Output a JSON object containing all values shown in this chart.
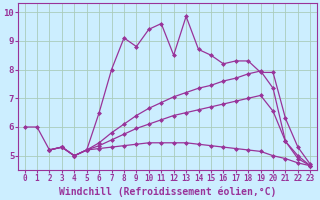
{
  "xlabel": "Windchill (Refroidissement éolien,°C)",
  "ylabel": "",
  "bg_color": "#cceeff",
  "grid_color": "#aaccbb",
  "line_color": "#993399",
  "xlim": [
    -0.5,
    23.5
  ],
  "ylim": [
    4.5,
    10.3
  ],
  "yticks": [
    5,
    6,
    7,
    8,
    9,
    10
  ],
  "xticks": [
    0,
    1,
    2,
    3,
    4,
    5,
    6,
    7,
    8,
    9,
    10,
    11,
    12,
    13,
    14,
    15,
    16,
    17,
    18,
    19,
    20,
    21,
    22,
    23
  ],
  "lines": [
    {
      "x": [
        0,
        1,
        2,
        3,
        4,
        5,
        6,
        7,
        8,
        9,
        10,
        11,
        12,
        13,
        14,
        15,
        16,
        17,
        18,
        19,
        20,
        21,
        22,
        23
      ],
      "y": [
        6.0,
        6.0,
        5.2,
        5.3,
        5.0,
        5.2,
        6.5,
        8.0,
        9.1,
        8.8,
        9.4,
        9.6,
        8.5,
        9.85,
        8.7,
        8.5,
        8.2,
        8.3,
        8.3,
        7.9,
        7.9,
        6.3,
        5.3,
        4.7
      ]
    },
    {
      "x": [
        2,
        3,
        4,
        5,
        6,
        7,
        8,
        9,
        10,
        11,
        12,
        13,
        14,
        15,
        16,
        17,
        18,
        19,
        20,
        21,
        22,
        23
      ],
      "y": [
        5.2,
        5.3,
        5.0,
        5.2,
        5.45,
        5.8,
        6.1,
        6.4,
        6.65,
        6.85,
        7.05,
        7.2,
        7.35,
        7.45,
        7.6,
        7.7,
        7.85,
        7.95,
        7.35,
        5.5,
        4.9,
        4.65
      ]
    },
    {
      "x": [
        2,
        3,
        4,
        5,
        6,
        7,
        8,
        9,
        10,
        11,
        12,
        13,
        14,
        15,
        16,
        17,
        18,
        19,
        20,
        21,
        22,
        23
      ],
      "y": [
        5.2,
        5.3,
        5.0,
        5.2,
        5.35,
        5.55,
        5.75,
        5.95,
        6.1,
        6.25,
        6.4,
        6.5,
        6.6,
        6.7,
        6.8,
        6.9,
        7.0,
        7.1,
        6.55,
        5.5,
        5.0,
        4.65
      ]
    },
    {
      "x": [
        2,
        3,
        4,
        5,
        6,
        7,
        8,
        9,
        10,
        11,
        12,
        13,
        14,
        15,
        16,
        17,
        18,
        19,
        20,
        21,
        22,
        23
      ],
      "y": [
        5.2,
        5.3,
        5.0,
        5.2,
        5.25,
        5.3,
        5.35,
        5.4,
        5.45,
        5.45,
        5.45,
        5.45,
        5.4,
        5.35,
        5.3,
        5.25,
        5.2,
        5.15,
        5.0,
        4.9,
        4.75,
        4.65
      ]
    }
  ],
  "xlabel_fontsize": 7,
  "xtick_fontsize": 5.5,
  "ytick_fontsize": 6.5,
  "marker": "D",
  "markersize": 2.0,
  "linewidth": 0.9
}
